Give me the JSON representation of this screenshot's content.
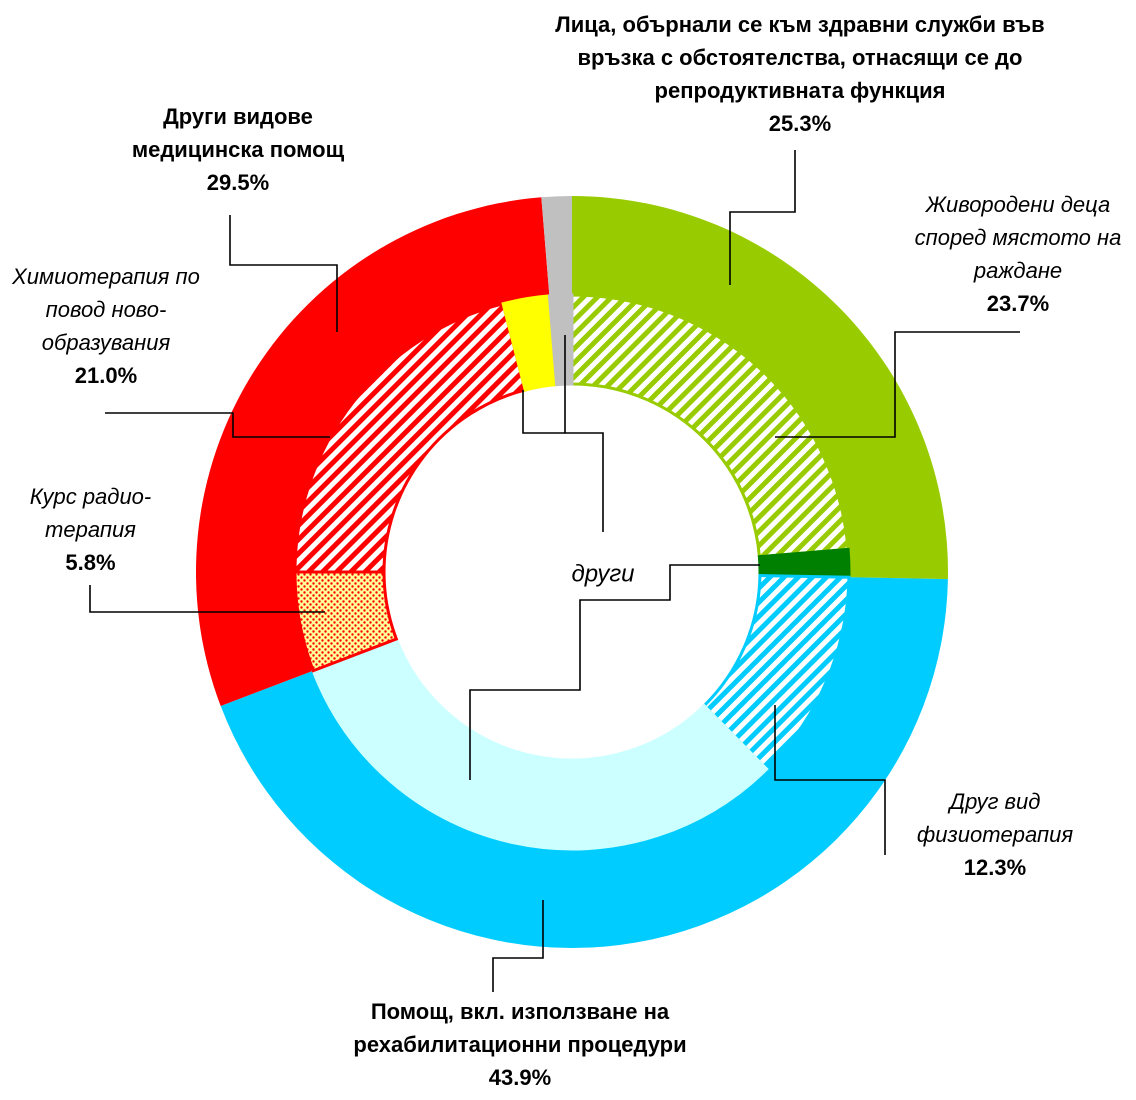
{
  "chart_data": {
    "type": "nested-donut",
    "outer": {
      "labels": [
        "Лица, обърнали се към здравни служби във връзка с обстоятелства, отнасящи се до репродуктивната функция",
        "Помощ, вкл. използване на рехабилитационни процедури",
        "Други видове медицинска помощ",
        null
      ],
      "values": [
        25.3,
        43.9,
        29.5,
        1.3
      ],
      "value_labels": [
        "25.3%",
        "43.9%",
        "29.5%",
        null
      ],
      "colors": [
        "#99cc00",
        "#00ccff",
        "#ff0000",
        "#c0c0c0"
      ]
    },
    "inner": {
      "labels": [
        "Живородени деца според мястото на раждане",
        null,
        "Друг вид физиотерапия",
        null,
        "Курс радио-терапия",
        "Химиотерапия по повод ново-образувания",
        null,
        null
      ],
      "values": [
        23.7,
        1.6,
        12.3,
        31.6,
        5.8,
        21.0,
        2.7,
        1.3
      ],
      "value_labels": [
        "23.7%",
        null,
        "12.3%",
        null,
        "5.8%",
        "21.0%",
        null,
        null
      ],
      "colors": [
        "#99cc00",
        "#008000",
        "#00ccff",
        "#ccffff",
        "#ff0000",
        "#ff0000",
        "#ffff00",
        "#c0c0c0"
      ],
      "patterns": [
        "hatch",
        "solid",
        "hatch",
        "solid",
        "dots",
        "hatch",
        "solid",
        "solid"
      ]
    },
    "annotation": "други"
  }
}
